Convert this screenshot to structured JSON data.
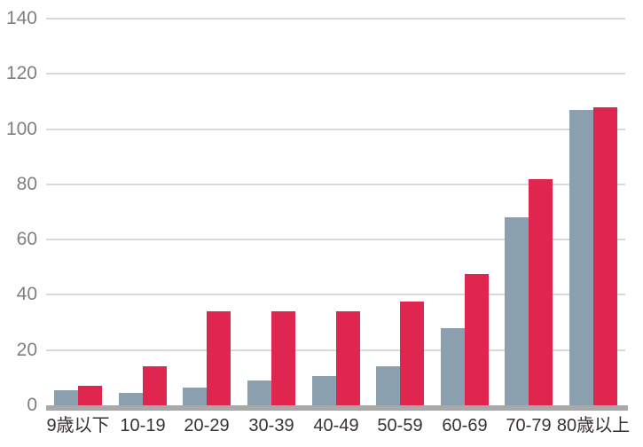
{
  "chart_data": {
    "type": "bar",
    "title": "",
    "xlabel": "",
    "ylabel": "",
    "categories": [
      "9歳以下",
      "10-19",
      "20-29",
      "30-39",
      "40-49",
      "50-59",
      "60-69",
      "70-79",
      "80歳以上"
    ],
    "series": [
      {
        "name": "series-1-gray-blue",
        "color": "#8BA0AE",
        "values": [
          5.5,
          4.5,
          6.5,
          9,
          10.5,
          14,
          28,
          68,
          107
        ]
      },
      {
        "name": "series-2-red",
        "color": "#E0264F",
        "values": [
          7,
          14,
          34,
          34,
          34,
          37.5,
          47.5,
          82,
          108
        ]
      }
    ],
    "ylim": [
      0,
      140
    ],
    "yticks": [
      0,
      20,
      40,
      60,
      80,
      100,
      120,
      140
    ],
    "grid": "horizontal",
    "legend": "none"
  },
  "colors": {
    "background": "#FFFFFF",
    "gridline": "#D9D9D9",
    "axis_line": "#A9A9A9",
    "ytick_label": "#7F7F7F",
    "xtick_label": "#3A3132"
  }
}
